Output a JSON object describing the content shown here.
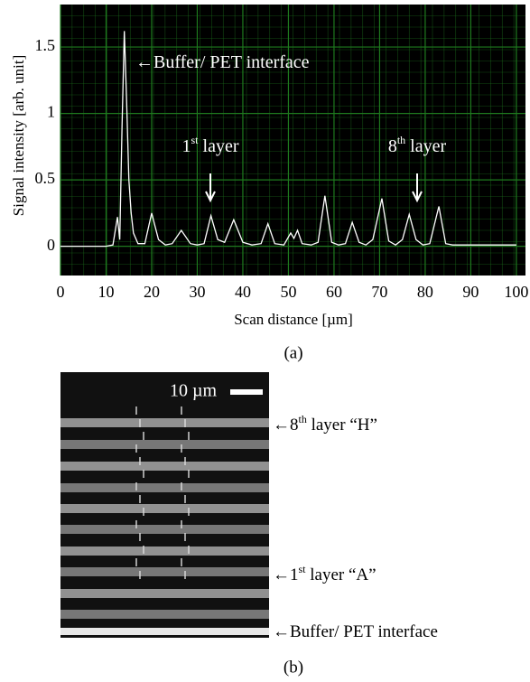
{
  "chart_data": {
    "type": "line",
    "panel_label": "(a)",
    "y_label": "Signal intensity [arb. unit]",
    "x_label": "Scan distance [µm]",
    "x": [
      0,
      10,
      11.5,
      12.5,
      13,
      13.5,
      14,
      14.5,
      15,
      15.5,
      16,
      17,
      18.5,
      20,
      21.5,
      23,
      24.5,
      26.5,
      28.5,
      30,
      31.5,
      33,
      34.5,
      36,
      38,
      40,
      42,
      44,
      45.5,
      47,
      49,
      50.5,
      51.2,
      52,
      53,
      55,
      56.5,
      58,
      59.5,
      61,
      62.5,
      64,
      65.5,
      67,
      68.5,
      70.5,
      72,
      73.5,
      75,
      76.5,
      78,
      79.5,
      81,
      83,
      84.5,
      86,
      90,
      100
    ],
    "values": [
      0,
      0,
      0.01,
      0.22,
      0.05,
      0.9,
      1.62,
      1.1,
      0.5,
      0.25,
      0.1,
      0.02,
      0.02,
      0.25,
      0.05,
      0.01,
      0.02,
      0.12,
      0.02,
      0.01,
      0.02,
      0.23,
      0.05,
      0.03,
      0.2,
      0.03,
      0.01,
      0.02,
      0.17,
      0.02,
      0.01,
      0.1,
      0.06,
      0.12,
      0.02,
      0.01,
      0.03,
      0.38,
      0.03,
      0.01,
      0.02,
      0.18,
      0.03,
      0.01,
      0.05,
      0.36,
      0.04,
      0.01,
      0.05,
      0.24,
      0.05,
      0.01,
      0.02,
      0.3,
      0.02,
      0.01,
      0.01,
      0.01
    ],
    "color": "#ffffff",
    "background": "#000000",
    "grid": true,
    "grid_color": "#1e7a1e",
    "xlim": [
      0,
      102
    ],
    "ylim": [
      -0.22,
      1.82
    ],
    "xticks": [
      0,
      10,
      20,
      30,
      40,
      50,
      60,
      70,
      80,
      90,
      100
    ],
    "yticks": [
      0,
      0.5,
      1,
      1.5
    ],
    "annotations": [
      [
        "←Buffer/ PET interface"
      ],
      [
        "1",
        "st",
        " layer"
      ],
      [
        "8",
        "th",
        " layer"
      ]
    ]
  },
  "panel_b": {
    "panel_label": "(b)",
    "scale_bar": "10 µm",
    "annotations": [
      [
        "←8",
        "th",
        " layer “H”"
      ],
      [
        "←1",
        "st",
        " layer “A”"
      ],
      [
        "←Buffer/ PET interface"
      ]
    ]
  }
}
